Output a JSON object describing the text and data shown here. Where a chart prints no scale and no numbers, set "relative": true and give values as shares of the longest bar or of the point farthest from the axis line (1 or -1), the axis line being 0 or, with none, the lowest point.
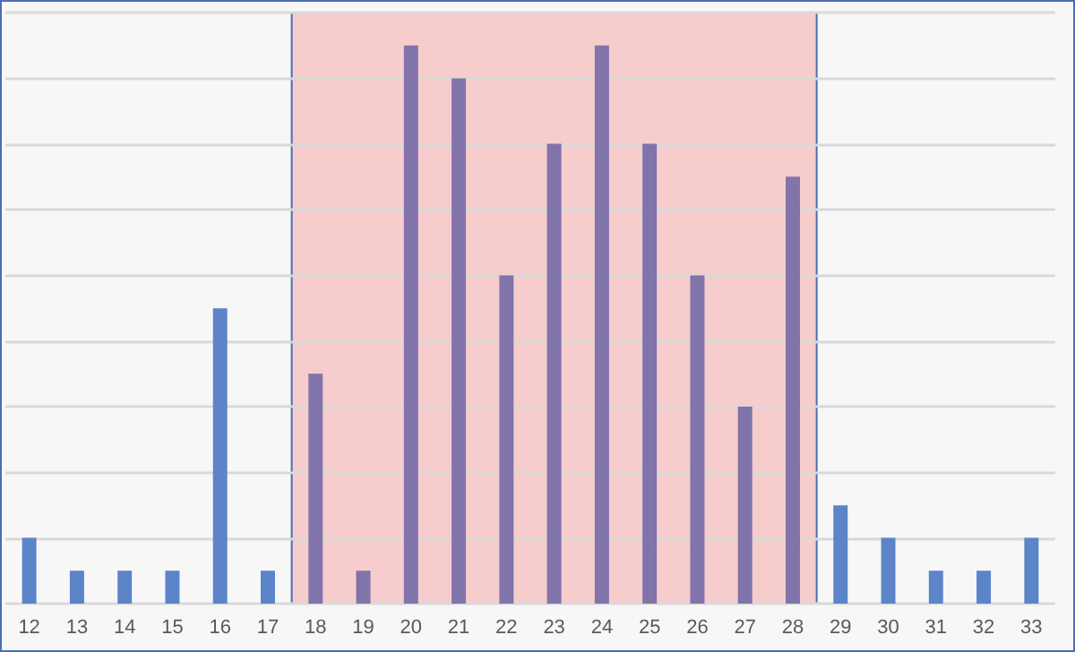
{
  "chart_data": {
    "type": "bar",
    "relative": true,
    "grid": "y",
    "categories": [
      "12",
      "13",
      "14",
      "15",
      "16",
      "17",
      "18",
      "19",
      "20",
      "21",
      "22",
      "23",
      "24",
      "25",
      "26",
      "27",
      "28",
      "29",
      "30",
      "31",
      "32",
      "33"
    ],
    "values": [
      0.118,
      0.059,
      0.059,
      0.059,
      0.529,
      0.059,
      0.412,
      0.059,
      1,
      0.941,
      0.588,
      0.824,
      1,
      0.824,
      0.588,
      0.353,
      0.765,
      0.176,
      0.118,
      0.059,
      0.059,
      0.118
    ],
    "colors": [
      "#5b84c9",
      "#5b84c9",
      "#5b84c9",
      "#5b84c9",
      "#5b84c9",
      "#5b84c9",
      "#8074ab",
      "#8074ab",
      "#8074ab",
      "#8074ab",
      "#8074ab",
      "#8074ab",
      "#8074ab",
      "#8074ab",
      "#8074ab",
      "#8074ab",
      "#8074ab",
      "#5b84c9",
      "#5b84c9",
      "#5b84c9",
      "#5b84c9",
      "#5b84c9"
    ],
    "bands": [
      {
        "axis": "x",
        "from": "18",
        "to": "28",
        "color": "#f7cccc"
      }
    ]
  }
}
